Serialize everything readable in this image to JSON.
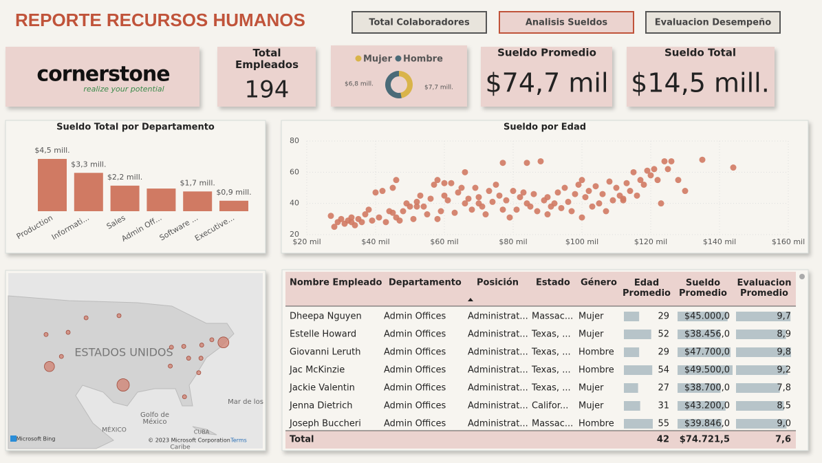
{
  "header": {
    "title": "REPORTE RECURSOS HUMANOS"
  },
  "tabs": [
    "Total Colaboradores",
    "Analisis Sueldos",
    "Evaluacion Desempeño"
  ],
  "active_tab": 1,
  "logo": {
    "name": "cornerstone",
    "tagline": "realize your potential"
  },
  "kpis": [
    {
      "label": "Total Empleados",
      "value": 194
    },
    {
      "label": "Sueldo Promedio",
      "value": "$74,7 mil"
    },
    {
      "label": "Sueldo Total",
      "value": "$14,5 mill."
    }
  ],
  "chart_data": [
    {
      "type": "donut",
      "categories": [
        "Mujer",
        "Hombre"
      ],
      "values": [
        6.8,
        7.7
      ],
      "value_labels": [
        "$6,8 mill.",
        "$7,7 mill."
      ],
      "colors": [
        "#d9b44a",
        "#4a6b78"
      ]
    },
    {
      "type": "bar",
      "title": "Sueldo Total por Departamento",
      "categories": [
        "Production",
        "Informati...",
        "Sales",
        "Admin Off...",
        "Software ...",
        "Executive..."
      ],
      "values": [
        4.5,
        3.3,
        2.2,
        1.95,
        1.7,
        0.9
      ],
      "value_labels": [
        "$4,5 mill.",
        "$3,3 mill.",
        "$2,2 mill.",
        null,
        "$1,7 mill.",
        "$0,9 mill."
      ],
      "color": "#d07a63"
    },
    {
      "type": "scatter",
      "title": "Sueldo por Edad",
      "color": "#d07a63",
      "grid": true,
      "x": [
        27,
        28,
        29,
        30,
        31,
        32,
        33,
        34,
        35,
        36,
        37,
        38,
        39,
        40,
        41,
        42,
        43,
        44,
        45,
        46,
        47,
        48,
        49,
        50,
        51,
        52,
        53,
        54,
        55,
        56,
        57,
        58,
        59,
        60,
        61,
        62,
        63,
        64,
        65,
        66,
        67,
        68,
        69,
        70,
        71,
        72,
        73,
        74,
        75,
        76,
        77,
        78,
        79,
        80,
        81,
        82,
        83,
        84,
        85,
        86,
        87,
        88,
        89,
        90,
        91,
        92,
        93,
        94,
        95,
        96,
        97,
        98,
        99,
        100,
        101,
        102,
        103,
        104,
        105,
        106,
        107,
        108,
        109,
        110,
        111,
        112,
        113,
        114,
        115,
        116,
        117,
        118,
        119,
        120,
        121,
        122,
        123,
        124,
        125,
        126,
        128,
        130,
        135,
        144,
        84,
        66,
        58,
        46,
        77,
        60,
        100,
        33,
        45,
        52,
        70,
        90,
        112
      ],
      "y": [
        32,
        25,
        28,
        30,
        27,
        29,
        31,
        26,
        30,
        28,
        33,
        36,
        29,
        47,
        31,
        48,
        28,
        35,
        50,
        31,
        29,
        35,
        40,
        38,
        30,
        41,
        45,
        38,
        33,
        43,
        52,
        30,
        35,
        45,
        42,
        53,
        34,
        47,
        50,
        40,
        43,
        36,
        50,
        44,
        38,
        33,
        48,
        41,
        52,
        45,
        36,
        42,
        31,
        48,
        36,
        44,
        47,
        40,
        38,
        46,
        35,
        67,
        42,
        44,
        38,
        40,
        47,
        37,
        50,
        41,
        35,
        46,
        52,
        31,
        44,
        48,
        38,
        51,
        40,
        46,
        35,
        54,
        42,
        50,
        45,
        42,
        53,
        48,
        60,
        45,
        55,
        52,
        61,
        58,
        62,
        55,
        40,
        67,
        62,
        67,
        55,
        48,
        68,
        63,
        66,
        60,
        55,
        55,
        66,
        53,
        55,
        28,
        34,
        38,
        40,
        33,
        43
      ],
      "xlim": [
        20,
        160
      ],
      "ylim": [
        20,
        80
      ],
      "xticks": [
        {
          "value": 20,
          "label": "$20 mil"
        },
        {
          "value": 40,
          "label": "$40 mil"
        },
        {
          "value": 60,
          "label": "$60 mil"
        },
        {
          "value": 80,
          "label": "$80 mil"
        },
        {
          "value": 100,
          "label": "$100 mil"
        },
        {
          "value": 120,
          "label": "$120 mil"
        },
        {
          "value": 140,
          "label": "$140 mil"
        },
        {
          "value": 160,
          "label": "$160 mil"
        }
      ],
      "yticks": [
        20,
        40,
        60,
        80
      ]
    }
  ],
  "map": {
    "labels": [
      "ESTADOS UNIDOS",
      "Golfo de",
      "México",
      "MÉXICO",
      "Mar de los",
      "CUBA",
      "Caribe",
      "Microsoft Bing",
      "© 2023 Microsoft Corporation",
      "Terms"
    ],
    "color": "#d08070",
    "bubbles": [
      {
        "lon": -107.2,
        "lat": 44.8,
        "value": 1
      },
      {
        "lon": -98.4,
        "lat": 45.3,
        "value": 1
      },
      {
        "lon": -117.9,
        "lat": 41,
        "value": 1
      },
      {
        "lon": -112,
        "lat": 41.5,
        "value": 1
      },
      {
        "lon": -117,
        "lat": 33.7,
        "value": 6
      },
      {
        "lon": -113.8,
        "lat": 36,
        "value": 1
      },
      {
        "lon": -70.5,
        "lat": 39.2,
        "value": 7
      },
      {
        "lon": -73.6,
        "lat": 39.8,
        "value": 1
      },
      {
        "lon": -76.3,
        "lat": 38.6,
        "value": 1
      },
      {
        "lon": -81.1,
        "lat": 38.3,
        "value": 1
      },
      {
        "lon": -84.4,
        "lat": 38.1,
        "value": 1
      },
      {
        "lon": -76.5,
        "lat": 35.6,
        "value": 1
      },
      {
        "lon": -79.8,
        "lat": 35.6,
        "value": 1
      },
      {
        "lon": -84.7,
        "lat": 33.8,
        "value": 1
      },
      {
        "lon": -77.1,
        "lat": 32.3,
        "value": 1
      },
      {
        "lon": -97.3,
        "lat": 29.5,
        "value": 9
      },
      {
        "lon": -80.9,
        "lat": 26.8,
        "value": 1
      }
    ]
  },
  "table": {
    "columns": [
      "Nombre Empleado",
      "Departamento",
      "Posición",
      "Estado",
      "Género",
      "Edad Promedio",
      "Sueldo Promedio",
      "Evaluacion Promedio"
    ],
    "rows": [
      [
        "Dheepa Nguyen",
        "Admin Offices",
        "Administrat...",
        "Massac...",
        "Mujer",
        29,
        {
          "value": 45000,
          "label": "$45.000,0"
        },
        {
          "value": 9.7,
          "label": "9,7"
        }
      ],
      [
        "Estelle Howard",
        "Admin Offices",
        "Administrat...",
        "Texas, ...",
        "Mujer",
        52,
        {
          "value": 38456,
          "label": "$38.456,0"
        },
        {
          "value": 8.9,
          "label": "8,9"
        }
      ],
      [
        "Giovanni Leruth",
        "Admin Offices",
        "Administrat...",
        "Texas, ...",
        "Hombre",
        29,
        {
          "value": 47700,
          "label": "$47.700,0"
        },
        {
          "value": 9.8,
          "label": "9,8"
        }
      ],
      [
        "Jac McKinzie",
        "Admin Offices",
        "Administrat...",
        "Texas, ...",
        "Hombre",
        54,
        {
          "value": 49500,
          "label": "$49.500,0"
        },
        {
          "value": 9.2,
          "label": "9,2"
        }
      ],
      [
        "Jackie Valentin",
        "Admin Offices",
        "Administrat...",
        "Texas, ...",
        "Mujer",
        27,
        {
          "value": 38700,
          "label": "$38.700,0"
        },
        {
          "value": 7.8,
          "label": "7,8"
        }
      ],
      [
        "Jenna Dietrich",
        "Admin Offices",
        "Administrat...",
        "Califor...",
        "Mujer",
        31,
        {
          "value": 43200,
          "label": "$43.200,0"
        },
        {
          "value": 8.5,
          "label": "8,5"
        }
      ],
      [
        "Joseph Buccheri",
        "Admin Offices",
        "Administrat...",
        "Massac...",
        "Hombre",
        55,
        {
          "value": 39846,
          "label": "$39.846,0"
        },
        {
          "value": 9.0,
          "label": "9,0"
        }
      ]
    ],
    "total": {
      "label": "Total",
      "edad": 42,
      "sueldo": "$74.721,5",
      "evaluacion": "7,6"
    }
  }
}
